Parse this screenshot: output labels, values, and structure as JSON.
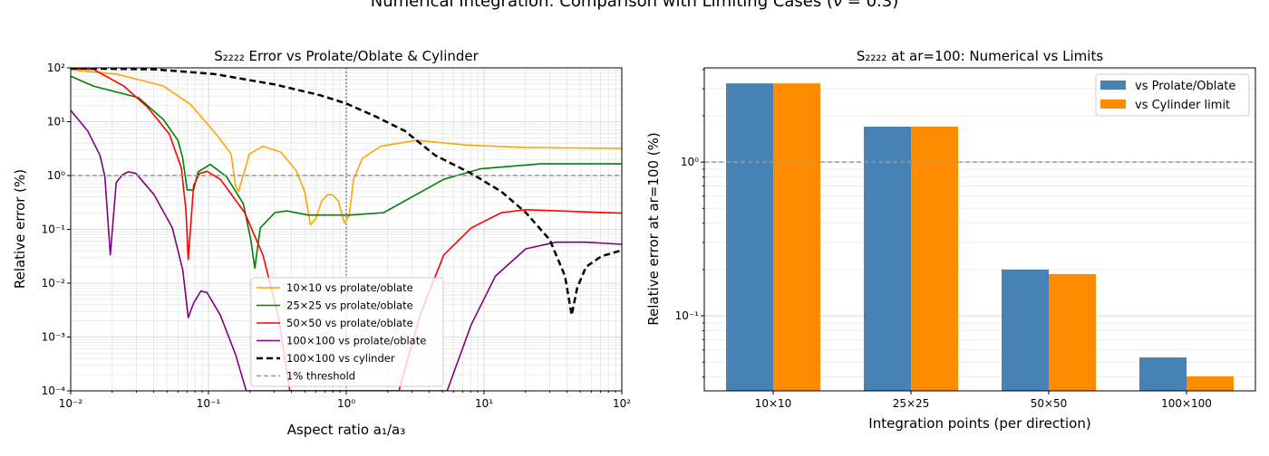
{
  "figure": {
    "suptitle": "Numerical Integration: Comparison with Limiting Cases (ν = 0.3)"
  },
  "chart_data": [
    {
      "type": "line",
      "title": "S₂₂₂₂ Error vs Prolate/Oblate & Cylinder",
      "xlabel": "Aspect ratio a₁/a₃",
      "ylabel": "Relative error (%)",
      "xscale": "log",
      "yscale": "log",
      "xlim": [
        0.01,
        100
      ],
      "ylim": [
        0.0001,
        100
      ],
      "xticks": [
        {
          "v": 0.01,
          "label": "10⁻²"
        },
        {
          "v": 0.1,
          "label": "10⁻¹"
        },
        {
          "v": 1,
          "label": "10⁰"
        },
        {
          "v": 10,
          "label": "10¹"
        },
        {
          "v": 100,
          "label": "10²"
        }
      ],
      "yticks": [
        {
          "v": 0.0001,
          "label": "10⁻⁴"
        },
        {
          "v": 0.001,
          "label": "10⁻³"
        },
        {
          "v": 0.01,
          "label": "10⁻²"
        },
        {
          "v": 0.1,
          "label": "10⁻¹"
        },
        {
          "v": 1,
          "label": "10⁰"
        },
        {
          "v": 10,
          "label": "10¹"
        },
        {
          "v": 100,
          "label": "10²"
        }
      ],
      "grid": "major+minor",
      "legend_position": "lower-center",
      "reference_lines": {
        "horizontal": 1,
        "vertical": 1
      },
      "series": [
        {
          "name": "10×10 vs prolate/oblate",
          "color": "#ffa500",
          "style": "solid",
          "x": [
            0.01,
            0.022,
            0.047,
            0.074,
            0.116,
            0.146,
            0.157,
            0.165,
            0.198,
            0.248,
            0.336,
            0.432,
            0.5,
            0.55,
            0.6,
            0.664,
            0.734,
            0.79,
            0.877,
            0.97,
            1.05,
            1.13,
            1.31,
            1.78,
            3.26,
            7.3,
            20,
            100
          ],
          "y": [
            92,
            76,
            46,
            21,
            5.5,
            2.5,
            0.65,
            0.5,
            2.5,
            3.5,
            2.7,
            1.25,
            0.5,
            0.122,
            0.158,
            0.34,
            0.44,
            0.44,
            0.34,
            0.13,
            0.18,
            0.85,
            2.08,
            3.5,
            4.5,
            3.7,
            3.3,
            3.2
          ]
        },
        {
          "name": "25×25 vs prolate/oblate",
          "color": "#008000",
          "style": "solid",
          "x": [
            0.01,
            0.0146,
            0.031,
            0.047,
            0.06,
            0.065,
            0.07,
            0.078,
            0.084,
            0.103,
            0.135,
            0.179,
            0.203,
            0.217,
            0.238,
            0.303,
            0.372,
            0.53,
            1.07,
            1.87,
            2.95,
            5.1,
            9.4,
            25.8,
            100
          ],
          "y": [
            70,
            46,
            28,
            11,
            4.5,
            2.1,
            0.54,
            0.54,
            1.17,
            1.61,
            0.96,
            0.3,
            0.064,
            0.019,
            0.107,
            0.205,
            0.22,
            0.184,
            0.184,
            0.205,
            0.39,
            0.85,
            1.33,
            1.65,
            1.65
          ]
        },
        {
          "name": "50×50 vs prolate/oblate",
          "color": "#ff0000",
          "style": "solid",
          "x": [
            0.01,
            0.0146,
            0.0243,
            0.036,
            0.052,
            0.0635,
            0.0686,
            0.0713,
            0.078,
            0.086,
            0.0975,
            0.122,
            0.183,
            0.248,
            0.32,
            0.39,
            2.41,
            3.43,
            5.1,
            8.1,
            13.4,
            20.1,
            100
          ],
          "y": [
            96,
            94,
            46,
            18.7,
            5.9,
            1.4,
            0.23,
            0.0277,
            0.65,
            1.09,
            1.2,
            0.85,
            0.205,
            0.0336,
            0.00255,
            0.0001,
            0.0001,
            0.00255,
            0.0336,
            0.107,
            0.205,
            0.232,
            0.2
          ]
        },
        {
          "name": "100×100 vs prolate/oblate",
          "color": "#800080",
          "style": "solid",
          "x": [
            0.01,
            0.0133,
            0.0163,
            0.0177,
            0.0194,
            0.0214,
            0.0237,
            0.0262,
            0.0298,
            0.0403,
            0.0546,
            0.065,
            0.0713,
            0.078,
            0.088,
            0.0975,
            0.122,
            0.157,
            0.188,
            5.4,
            8.1,
            12.1,
            20.1,
            33.3,
            55,
            100
          ],
          "y": [
            16.2,
            6.7,
            2.37,
            0.96,
            0.0336,
            0.74,
            1.03,
            1.17,
            1.09,
            0.44,
            0.107,
            0.0177,
            0.0023,
            0.00427,
            0.00714,
            0.0067,
            0.00255,
            0.000475,
            0.0001,
            0.0001,
            0.00173,
            0.0136,
            0.0436,
            0.0578,
            0.0578,
            0.0528
          ]
        },
        {
          "name": "100×100 vs cylinder",
          "color": "#000000",
          "style": "dashed",
          "x": [
            0.01,
            0.0403,
            0.11,
            0.303,
            0.647,
            1.0,
            1.61,
            2.67,
            4.42,
            8.1,
            13.4,
            20.1,
            30,
            38.7,
            43.3,
            47.4,
            55,
            71,
            100
          ],
          "y": [
            98,
            94,
            77,
            49,
            31,
            21.8,
            12.7,
            6.7,
            2.37,
            1.09,
            0.5,
            0.205,
            0.064,
            0.0136,
            0.00255,
            0.0081,
            0.0201,
            0.0316,
            0.041
          ]
        },
        {
          "name": "1% threshold",
          "color": "#999999",
          "style": "dashed",
          "y_constant": 1
        }
      ]
    },
    {
      "type": "bar",
      "title": "S₂₂₂₂ at ar=100: Numerical vs Limits",
      "xlabel": "Integration points (per direction)",
      "ylabel": "Relative error at ar=100 (%)",
      "yscale": "log",
      "ylim": [
        0.0325,
        4.1
      ],
      "yticks": [
        {
          "v": 0.1,
          "label": "10⁻¹"
        },
        {
          "v": 1,
          "label": "10⁰"
        }
      ],
      "grid": "y major+minor",
      "legend_position": "upper-right",
      "threshold": 1,
      "categories": [
        "10×10",
        "25×25",
        "50×50",
        "100×100"
      ],
      "series": [
        {
          "name": "vs Prolate/Oblate",
          "color": "#4682b4",
          "values": [
            3.25,
            1.7,
            0.2,
            0.0536
          ]
        },
        {
          "name": "vs Cylinder limit",
          "color": "#ff8c00",
          "values": [
            3.25,
            1.7,
            0.187,
            0.0404
          ]
        }
      ]
    }
  ]
}
